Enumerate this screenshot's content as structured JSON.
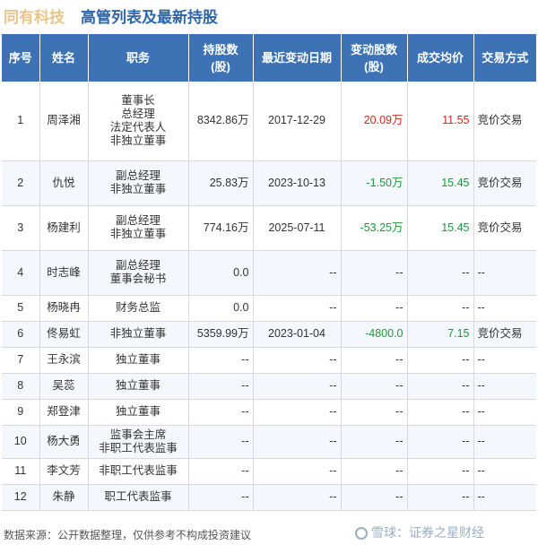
{
  "header": {
    "company": "同有科技",
    "title": "高管列表及最新持股"
  },
  "columns": [
    "序号",
    "姓名",
    "职务",
    "持股数\n(股)",
    "最近变动日期",
    "变动股数\n(股)",
    "成交均价",
    "交易方式"
  ],
  "rows": [
    {
      "no": "1",
      "name": "周泽湘",
      "roles": [
        "董事长",
        "总经理",
        "法定代表人",
        "非独立董事"
      ],
      "shares": "8342.86万",
      "date": "2017-12-29",
      "change": "20.09万",
      "price": "11.55",
      "method": "竞价交易",
      "change_color": "#e02020",
      "price_color": "#e02020"
    },
    {
      "no": "2",
      "name": "仇悦",
      "roles": [
        "副总经理",
        "非独立董事"
      ],
      "shares": "25.83万",
      "date": "2023-10-13",
      "change": "-1.50万",
      "price": "15.45",
      "method": "竞价交易",
      "change_color": "#1a9a3a",
      "price_color": "#1a9a3a"
    },
    {
      "no": "3",
      "name": "杨建利",
      "roles": [
        "副总经理",
        "非独立董事"
      ],
      "shares": "774.16万",
      "date": "2025-07-11",
      "change": "-53.25万",
      "price": "15.45",
      "method": "竞价交易",
      "change_color": "#1a9a3a",
      "price_color": "#1a9a3a"
    },
    {
      "no": "4",
      "name": "时志峰",
      "roles": [
        "副总经理",
        "董事会秘书"
      ],
      "shares": "0.0",
      "date": "--",
      "change": "--",
      "price": "--",
      "method": "--"
    },
    {
      "no": "5",
      "name": "杨晓冉",
      "roles": [
        "财务总监"
      ],
      "shares": "0.0",
      "date": "--",
      "change": "--",
      "price": "--",
      "method": "--"
    },
    {
      "no": "6",
      "name": "佟易虹",
      "roles": [
        "非独立董事"
      ],
      "shares": "5359.99万",
      "date": "2023-01-04",
      "change": "-4800.0",
      "price": "7.15",
      "method": "竞价交易",
      "change_color": "#1a9a3a",
      "price_color": "#1a9a3a"
    },
    {
      "no": "7",
      "name": "王永滨",
      "roles": [
        "独立董事"
      ],
      "shares": "--",
      "date": "--",
      "change": "--",
      "price": "--",
      "method": "--"
    },
    {
      "no": "8",
      "name": "吴蕊",
      "roles": [
        "独立董事"
      ],
      "shares": "--",
      "date": "--",
      "change": "--",
      "price": "--",
      "method": "--"
    },
    {
      "no": "9",
      "name": "郑登津",
      "roles": [
        "独立董事"
      ],
      "shares": "--",
      "date": "--",
      "change": "--",
      "price": "--",
      "method": "--"
    },
    {
      "no": "10",
      "name": "杨大勇",
      "roles": [
        "监事会主席",
        "非职工代表监事"
      ],
      "shares": "--",
      "date": "--",
      "change": "--",
      "price": "--",
      "method": "--"
    },
    {
      "no": "11",
      "name": "李文芳",
      "roles": [
        "非职工代表监事"
      ],
      "shares": "--",
      "date": "--",
      "change": "--",
      "price": "--",
      "method": "--"
    },
    {
      "no": "12",
      "name": "朱静",
      "roles": [
        "职工代表监事"
      ],
      "shares": "--",
      "date": "--",
      "change": "--",
      "price": "--",
      "method": "--"
    }
  ],
  "footer": {
    "source": "数据来源：公开数据整理，仅供参考不构成投资建议",
    "logo": "雪球：证券之星财经"
  }
}
